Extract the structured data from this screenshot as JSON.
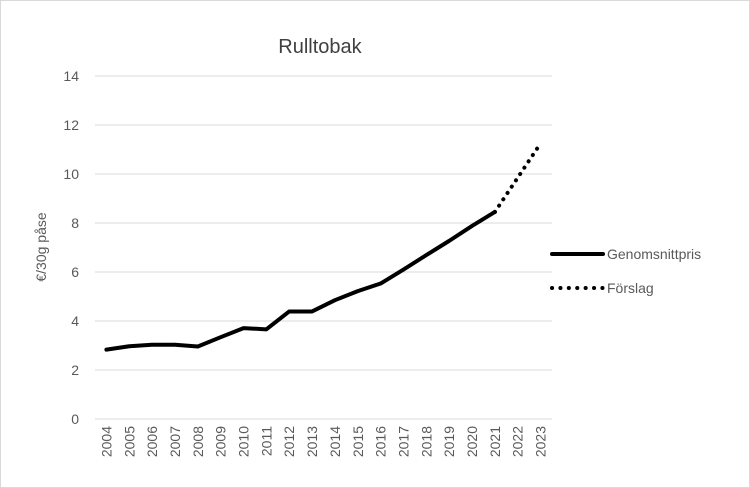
{
  "chart_data": {
    "type": "line",
    "title": "Rulltobak",
    "xlabel": "",
    "ylabel": "€/30g påse",
    "ylim": [
      0,
      14
    ],
    "yticks": [
      0,
      2,
      4,
      6,
      8,
      10,
      12,
      14
    ],
    "grid": true,
    "legend_placement": "right",
    "categories": [
      "2004",
      "2005",
      "2006",
      "2007",
      "2008",
      "2009",
      "2010",
      "2011",
      "2012",
      "2013",
      "2014",
      "2015",
      "2016",
      "2017",
      "2018",
      "2019",
      "2020",
      "2021",
      "2022",
      "2023"
    ],
    "series": [
      {
        "name": "Genomsnittpris",
        "style": "solid",
        "color": "#000000",
        "values": [
          2.83,
          2.97,
          3.03,
          3.03,
          2.96,
          3.34,
          3.71,
          3.66,
          4.39,
          4.39,
          4.85,
          5.22,
          5.53,
          6.1,
          6.69,
          7.27,
          7.88,
          8.45,
          null,
          null
        ]
      },
      {
        "name": "Förslag",
        "style": "dotted",
        "color": "#000000",
        "values": [
          null,
          null,
          null,
          null,
          null,
          null,
          null,
          null,
          null,
          null,
          null,
          null,
          null,
          null,
          null,
          null,
          null,
          8.45,
          9.85,
          11.25
        ]
      }
    ]
  }
}
